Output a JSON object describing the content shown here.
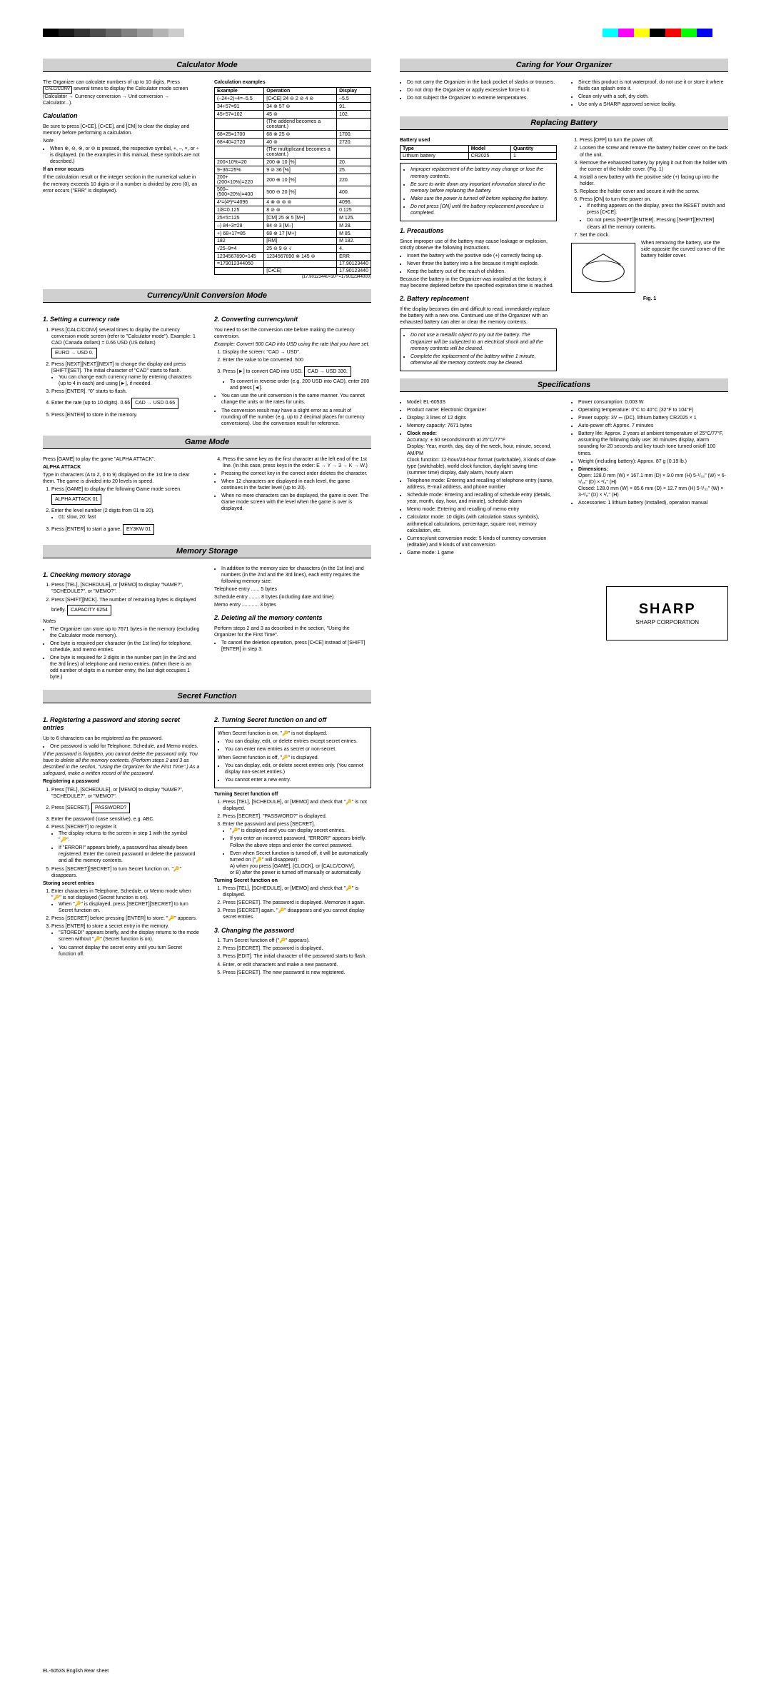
{
  "colorbar_left": [
    "#000000",
    "#1a1a1a",
    "#333333",
    "#4d4d4d",
    "#666666",
    "#808080",
    "#999999",
    "#b3b3b3",
    "#cccccc",
    "#ffffff"
  ],
  "colorbar_right": [
    "#00ffff",
    "#ff00ff",
    "#ffff00",
    "#000000",
    "#ff0000",
    "#00ff00",
    "#0000ff",
    "#ffffff"
  ],
  "sections": {
    "calc": "Calculator Mode",
    "currency": "Currency/Unit Conversion Mode",
    "game": "Game Mode",
    "memory": "Memory Storage",
    "secret": "Secret Function",
    "caring": "Caring for Your Organizer",
    "battery": "Replacing Battery",
    "specs": "Specifications"
  },
  "calc": {
    "intro": "The Organizer can calculate numbers of up to 10 digits. Press",
    "intro2": "several times to display the Calculator mode screen (Calculator → Currency conversion → Unit conversion → Calculator...).",
    "calc_hdr": "Calculation",
    "calc_txt": "Be sure to press [C•CE], [C•CE], and [CM] to clear the display and memory before performing a calculation.",
    "note_hdr": "Note",
    "note_txt": "When ⊕, ⊖, ⊗, or ⊘ is pressed, the respective symbol, +, –, ×, or ÷ is displayed. (In the examples in this manual, these symbols are not described.)",
    "err_hdr": "If an error occurs",
    "err_txt": "If the calculation result or the integer section in the numerical value in the memory exceeds 10 digits or if a number is divided by zero (0), an error occurs (\"ERR\" is displayed).",
    "examples_hdr": "Calculation examples",
    "examples_cols": [
      "Example",
      "Operation",
      "Display"
    ],
    "examples": [
      [
        "(–24+2)÷4=–5.5",
        "[C•CE] 24 ⊖ 2 ⊘ 4 ⊜",
        "–5.5"
      ],
      [
        "34+57=91",
        "34 ⊕ 57 ⊜",
        "91."
      ],
      [
        "45+57=102",
        "45 ⊜",
        "102."
      ],
      [
        "",
        "(The addend becomes a constant.)",
        ""
      ],
      [
        "68×25=1700",
        "68 ⊗ 25 ⊜",
        "1700."
      ],
      [
        "68×40=2720",
        "40 ⊜",
        "2720."
      ],
      [
        "",
        "(The multiplicand becomes a constant.)",
        ""
      ],
      [
        "200×10%=20",
        "200 ⊗ 10 [%]",
        "20."
      ],
      [
        "9÷36=25%",
        "9 ⊘ 36 [%]",
        "25."
      ],
      [
        "200+(200×10%)=220",
        "200 ⊕ 10 [%]",
        "220."
      ],
      [
        "500–(500×20%)=400",
        "500 ⊖ 20 [%]",
        "400."
      ],
      [
        "4³=(4²)²=4096",
        "4 ⊗ ⊜ ⊜ ⊜",
        "4096."
      ],
      [
        "1/8=0.125",
        "8 ⊘ ⊜",
        "0.125"
      ],
      [
        "25×5=125",
        "[CM] 25 ⊗ 5 [M+]",
        "M 125."
      ],
      [
        "–) 84÷3=28",
        "84 ⊘ 3 [M–]",
        "M 28."
      ],
      [
        "+) 68+17=85",
        "68 ⊕ 17 [M+]",
        "M 85."
      ],
      [
        "  182",
        "[RM]",
        "M 182."
      ],
      [
        "√25–9=4",
        "25 ⊖ 9 ⊜ √",
        "4."
      ],
      [
        "1234567890×145",
        "1234567890 ⊗ 145 ⊜",
        "ERR"
      ],
      [
        "=179012344050",
        "",
        "17.90123440"
      ],
      [
        "",
        "[C•CE]",
        "17.90123440"
      ]
    ],
    "footnote": "(17.90123440×10¹⁰=179012344000)"
  },
  "currency": {
    "h1": "1. Setting a currency rate",
    "h2": "2. Converting currency/unit",
    "step1": "Press [CALC/CONV] several times to display the currency conversion mode screen (refer to \"Calculator mode\"). Example: 1 CAD (Canada dollars) = 0.66 USD (US dollars)",
    "box1": "EURO → USD                0.",
    "step2": "Press [NEXT][NEXT][NEXT] to change the display and press [SHIFT][SET]. The initial character of \"CAD\" starts to flash.",
    "step2_note": "You can change each currency name by entering characters (up to 4 in each) and using [►], if needed.",
    "step3": "Press [ENTER]. \"0\" starts to flash.",
    "step4": "Enter the rate (up to 10 digits). 0.66",
    "box2": "CAD → USD              0.66",
    "step5": "Press [ENTER] to store in the memory.",
    "conv_intro": "You need to set the conversion rate before making the currency conversion.",
    "conv_ex": "Example: Convert 500 CAD into USD using the rate that you have set.",
    "conv1": "Display the screen: \"CAD → USD\".",
    "conv2": "Enter the value to be converted. 500",
    "conv3": "Press [►] to convert CAD into USD.",
    "box3": "CAD → USD             330.",
    "conv3_note": "To convert in reverse order (e.g. 200 USD into CAD), enter 200 and press [◄].",
    "conv_bullet1": "You can use the unit conversion in the same manner. You cannot change the units or the rates for units.",
    "conv_bullet2": "The conversion result may have a slight error as a result of rounding off the number (e.g. up to 2 decimal places for currency conversions). Use the conversion result for reference."
  },
  "game": {
    "intro": "Press [GAME] to play the game \"ALPHA ATTACK\".",
    "alpha_hdr": "ALPHA ATTACK",
    "alpha_txt": "Type in characters (A to Z, 0 to 9) displayed on the 1st line to clear them. The game is divided into 20 levels in speed.",
    "s1": "Press [GAME] to display the following Game mode screen.",
    "box1": "ALPHA ATTACK          01",
    "s2": "Enter the level number (2 digits from 01 to 20).",
    "s2_note": "01: slow, 20: fast",
    "s3": "Press [ENTER] to start a game.",
    "box2": "EY3KW                  01",
    "s4": "Press the same key as the first character at the left end of the 1st line. (In this case, press keys in the order: E → Y → 3 → K → W.)",
    "b1": "Pressing the correct key in the correct order deletes the character.",
    "b2": "When 12 characters are displayed in each level, the game continues in the faster level (up to 20).",
    "b3": "When no more characters can be displayed, the game is over. The Game mode screen with the level when the game is over is displayed."
  },
  "memory": {
    "h1": "1. Checking memory storage",
    "h2": "2. Deleting all the memory contents",
    "s1": "Press [TEL], [SCHEDULE], or [MEMO] to display \"NAME?\", \"SCHEDULE?\", or \"MEMO?\".",
    "s2": "Press [SHIFT][MCK]. The number of remaining bytes is displayed briefly.",
    "box1": "CAPACITY          6254",
    "notes_hdr": "Notes",
    "n1": "The Organizer can store up to 7671 bytes in the memory (excluding the Calculator mode memory).",
    "n2": "One byte is required per character (in the 1st line) for telephone, schedule, and memo entries.",
    "n3": "One byte is required for 2 digits in the number part (in the 2nd and the 3rd lines) of telephone and memo entries. (When there is an odd number of digits in a number entry, the last digit occupies 1 byte.)",
    "addl": "In addition to the memory size for characters (in the 1st line) and numbers (in the 2nd and the 3rd lines), each entry requires the following memory size:",
    "tel": "Telephone entry ...... 5 bytes",
    "sched": "Schedule entry ........ 8 bytes (including date and time)",
    "memo": "Memo entry ............ 3 bytes",
    "del1": "Perform steps 2 and 3 as described in the section, \"Using the Organizer for the First Time\".",
    "del2": "To cancel the deletion operation, press [C•CE] instead of [SHIFT][ENTER] in step 3."
  },
  "secret": {
    "h1": "1. Registering a password and storing secret entries",
    "h2": "2. Turning Secret function on and off",
    "h3": "3. Changing the password",
    "intro": "Up to 6 characters can be registered as the password.",
    "b1": "One password is valid for Telephone, Schedule, and Memo modes.",
    "warn": "If the password is forgotten, you cannot delete the password only. You have to delete all the memory contents. (Perform steps 2 and 3 as described in the section, \"Using the Organizer for the First Time\".) As a safeguard, make a written record of the password.",
    "reg_hdr": "Registering a password",
    "r1": "Press [TEL], [SCHEDULE], or [MEMO] to display \"NAME?\", \"SCHEDULE?\", or \"MEMO?\".",
    "r2": "Press [SECRET].",
    "box1": "PASSWORD?",
    "r3": "Enter the password (case sensitive), e.g. ABC.",
    "r4": "Press [SECRET] to register it.",
    "r4a": "The display returns to the screen in step 1 with the symbol \"🔑\".",
    "r4b": "If \"ERROR!\" appears briefly, a password has already been registered. Enter the correct password or delete the password and all the memory contents.",
    "r5": "Press [SECRET][SECRET] to turn Secret function on. \"🔑\" disappears.",
    "store_hdr": "Storing secret entries",
    "st1": "Enter characters in Telephone, Schedule, or Memo mode when \"🔑\" is not displayed (Secret function is on).",
    "st1a": "When \"🔑\" is displayed, press [SECRET][SECRET] to turn Secret function on.",
    "st2": "Press [SECRET] before pressing [ENTER] to store. \"🔑\" appears.",
    "st3": "Press [ENTER] to store a secret entry in the memory.",
    "st3a": "\"STORED!\" appears briefly, and the display returns to the mode screen without \"🔑\" (Secret function is on).",
    "st3b": "You cannot display the secret entry until you turn Secret function off.",
    "on_box_hdr": "When Secret function is on, \"🔑\" is not displayed.",
    "on1": "You can display, edit, or delete entries except secret entries.",
    "on2": "You can enter new entries as secret or non-secret.",
    "off_box_hdr": "When Secret function is off, \"🔑\" is displayed.",
    "off1": "You can display, edit, or delete secret entries only. (You cannot display non-secret entries.)",
    "off2": "You cannot enter a new entry.",
    "off_hdr": "Turning Secret function off",
    "o1": "Press [TEL], [SCHEDULE], or [MEMO] and check that \"🔑\" is not displayed.",
    "o2": "Press [SECRET]. \"PASSWORD?\" is displayed.",
    "o3": "Enter the password and press [SECRET].",
    "o3a": "\"🔑\" is displayed and you can display secret entries.",
    "o3b": "If you enter an incorrect password, \"ERROR!\" appears briefly. Follow the above steps and enter the correct password.",
    "o3c": "Even when Secret function is turned off, it will be automatically turned on (\"🔑\" will disappear):",
    "o3c1": "A) when you press [GAME], [CLOCK], or [CALC/CONV],",
    "o3c2": "or B) after the power is turned off manually or automatically.",
    "on_hdr": "Turning Secret function on",
    "on_s1": "Press [TEL], [SCHEDULE], or [MEMO] and check that \"🔑\" is displayed.",
    "on_s2": "Press [SECRET]. The password is displayed. Memorize it again.",
    "on_s3": "Press [SECRET] again. \"🔑\" disappears and you cannot display secret entries.",
    "chg1": "Turn Secret function off (\"🔑\" appears).",
    "chg2": "Press [SECRET]. The password is displayed.",
    "chg3": "Press [EDIT]. The initial character of the password starts to flash.",
    "chg4": "Enter, or edit characters and make a new password.",
    "chg5": "Press [SECRET]. The new password is now registered."
  },
  "caring": {
    "c1": "Do not carry the Organizer in the back pocket of slacks or trousers.",
    "c2": "Do not drop the Organizer or apply excessive force to it.",
    "c3": "Do not subject the Organizer to extreme temperatures.",
    "c4": "Since this product is not waterproof, do not use it or store it where fluids can splash onto it.",
    "c5": "Clean only with a soft, dry cloth.",
    "c6": "Use only a SHARP approved service facility."
  },
  "battery": {
    "used_hdr": "Battery used",
    "tbl_cols": [
      "Type",
      "Model",
      "Quantity"
    ],
    "tbl_row": [
      "Lithium battery",
      "CR2025",
      "1"
    ],
    "warn1": "Improper replacement of the battery may change or lose the memory contents.",
    "warn2": "Be sure to write down any important information stored in the memory before replacing the battery.",
    "warn3": "Make sure the power is turned off before replacing the battery.",
    "warn4": "Do not press [ON] until the battery replacement procedure is completed.",
    "s1": "Press [OFF] to turn the power off.",
    "s2": "Loosen the screw and remove the battery holder cover on the back of the unit.",
    "s3": "Remove the exhausted battery by prying it out from the holder with the corner of the holder cover. (Fig. 1)",
    "s4": "Install a new battery with the positive side (+) facing up into the holder.",
    "s5": "Replace the holder cover and secure it with the screw.",
    "s6": "Press [ON] to turn the power on.",
    "s6a": "If nothing appears on the display, press the RESET switch and press [C•CE].",
    "s6b": "Do not press [SHIFT][ENTER]. Pressing [SHIFT][ENTER] clears all the memory contents.",
    "s7": "Set the clock.",
    "fig_label": "Fig. 1",
    "fig_txt": "When removing the battery, use the side opposite the curved corner of the battery holder cover.",
    "prec_hdr": "1. Precautions",
    "p_intro": "Since improper use of the battery may cause leakage or explosion, strictly observe the following instructions.",
    "p1": "Insert the battery with the positive side (+) correctly facing up.",
    "p2": "Never throw the battery into a fire because it might explode.",
    "p3": "Keep the battery out of the reach of children.",
    "p_after": "Because the battery in the Organizer was installed at the factory, it may become depleted before the specified expiration time is reached.",
    "repl_hdr": "2. Battery replacement",
    "repl_txt": "If the display becomes dim and difficult to read, immediately replace the battery with a new one. Continued use of the Organizer with an exhausted battery can alter or clear the memory contents.",
    "repl_w1": "Do not use a metallic object to pry out the battery. The Organizer will be subjected to an electrical shock and all the memory contents will be cleared.",
    "repl_w2": "Complete the replacement of the battery within 1 minute, otherwise all the memory contents may be cleared."
  },
  "specs": {
    "model": "Model: EL-6053S",
    "name": "Product name: Electronic Organizer",
    "display": "Display: 3 lines of 12 digits",
    "mem": "Memory capacity: 7671 bytes",
    "clock_hdr": "Clock mode:",
    "clock_acc": "Accuracy: ± 60 seconds/month at 25°C/77°F",
    "clock_disp": "Display: Year, month, day, day of the week, hour, minute, second, AM/PM",
    "clock_func": "Clock function: 12-hour/24-hour format (switchable), 3 kinds of date type (switchable), world clock function, daylight saving time (summer time) display, daily alarm, hourly alarm",
    "tel": "Telephone mode: Entering and recalling of telephone entry (name, address, E-mail address, and phone number",
    "sched": "Schedule mode: Entering and recalling of schedule entry (details, year, month, day, hour, and minute), schedule alarm",
    "memo": "Memo mode: Entering and recalling of memo entry",
    "calc": "Calculator mode: 10 digits (with calculation status symbols), arithmetical calculations, percentage, square root, memory calculation, etc.",
    "curr": "Currency/unit conversion mode: 5 kinds of currency conversion (editable) and 9 kinds of unit conversion",
    "game": "Game mode: 1 game",
    "power": "Power consumption: 0.003 W",
    "temp": "Operating temperature: 0°C to 40°C (32°F to 104°F)",
    "supply": "Power supply: 3V ⎓ (DC), lithium battery CR2025 × 1",
    "auto": "Auto-power off: Approx. 7 minutes",
    "life": "Battery life: Approx. 2 years at ambient temperature of 25°C/77°F, assuming the following daily use: 30 minutes display, alarm sounding for 20 seconds and key touch tone turned on/off 100 times.",
    "weight": "Weight (including battery): Approx. 87 g (0.19 lb.)",
    "dim_hdr": "Dimensions:",
    "dim_open": "Open: 128.0 mm (W) × 167.1 mm (D) × 9.0 mm (H) 5-¹/₃₂\" (W) × 6-⁹/₁₆\" (D) × ³/₈\" (H)",
    "dim_closed": "Closed: 128.0 mm (W) × 85.6 mm (D) × 12.7 mm (H) 5-¹/₃₂\" (W) × 3-³/₈\" (D) × ¹/₂\" (H)",
    "acc": "Accessories: 1 lithium battery (installed), operation manual"
  },
  "logo": {
    "brand": "SHARP",
    "corp": "SHARP CORPORATION"
  },
  "footer": "EL-6053S    English    Rear sheet"
}
